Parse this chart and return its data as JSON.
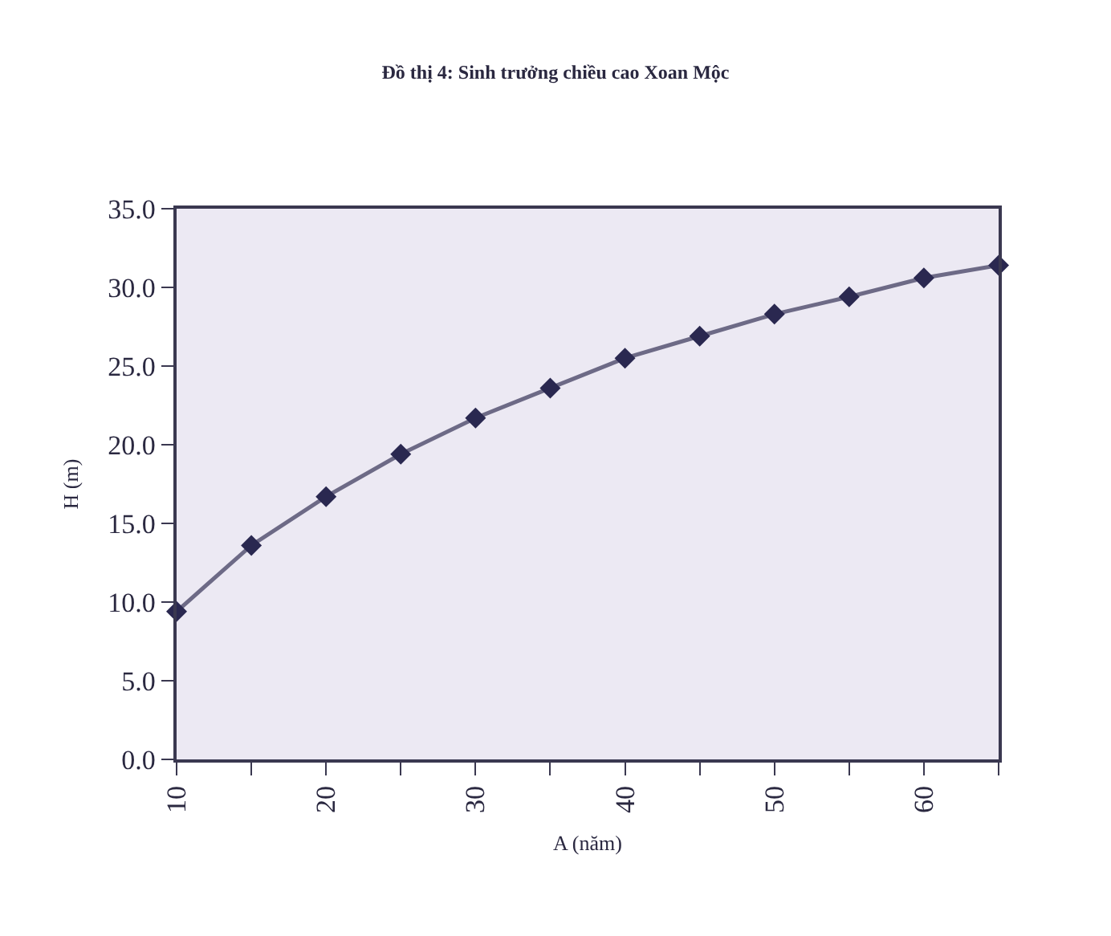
{
  "chart_data": {
    "type": "line",
    "title": "Đồ thị 4: Sinh trưởng chiều cao Xoan Mộc",
    "xlabel": "A (năm)",
    "ylabel": "H (m)",
    "x": [
      10,
      15,
      20,
      25,
      30,
      35,
      40,
      45,
      50,
      55,
      60,
      65
    ],
    "series": [
      {
        "color": "#2a2850",
        "values": [
          9.4,
          13.6,
          16.7,
          19.4,
          21.7,
          23.6,
          25.5,
          26.9,
          28.3,
          29.4,
          30.6,
          31.4
        ]
      }
    ],
    "xlim": [
      10,
      65
    ],
    "xticks": [
      10,
      {
        "value": 15,
        "label": null
      },
      20,
      {
        "value": 25,
        "label": null
      },
      30,
      {
        "value": 35,
        "label": null
      },
      40,
      {
        "value": 45,
        "label": null
      },
      50,
      {
        "value": 55,
        "label": null
      },
      60,
      {
        "value": 65,
        "label": null
      }
    ],
    "ylim": [
      0,
      35
    ],
    "yticks": [
      {
        "value": 0,
        "label": "0.0"
      },
      {
        "value": 5,
        "label": "5.0"
      },
      {
        "value": 10,
        "label": "10.0"
      },
      {
        "value": 15,
        "label": "15.0"
      },
      {
        "value": 20,
        "label": "20.0"
      },
      {
        "value": 25,
        "label": "25.0"
      },
      {
        "value": 30,
        "label": "30.0"
      },
      {
        "value": 35,
        "label": "35.0"
      }
    ],
    "grid": false,
    "marker": "diamond",
    "line_style": "solid"
  }
}
